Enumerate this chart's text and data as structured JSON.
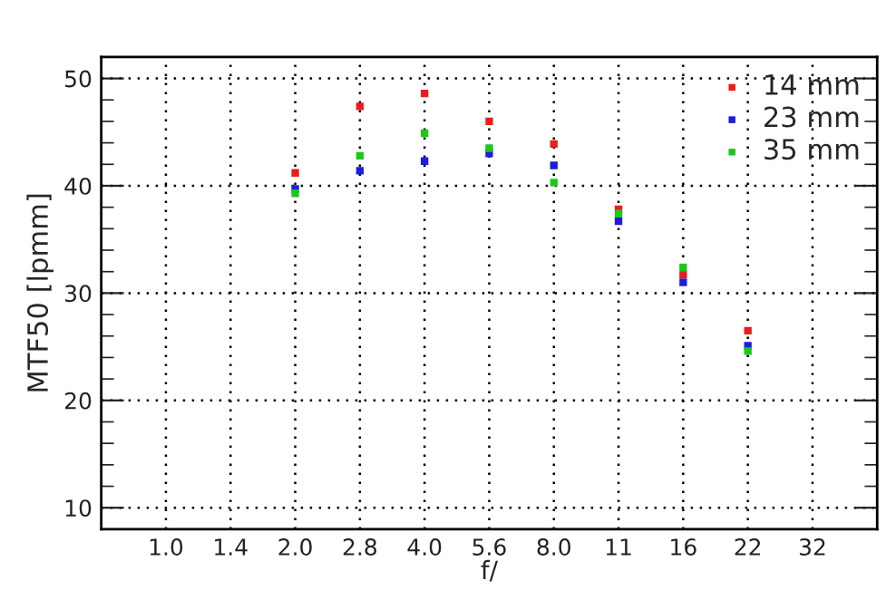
{
  "chart_data": {
    "type": "scatter",
    "xlabel": "f/",
    "ylabel": "MTF50 [lpmm]",
    "categories": [
      "1.0",
      "1.4",
      "2.0",
      "2.8",
      "4.0",
      "5.6",
      "8.0",
      "11",
      "16",
      "22",
      "32"
    ],
    "series": [
      {
        "name": "14 mm",
        "color": "#ee1c1c",
        "values": [
          null,
          null,
          41.2,
          47.4,
          48.6,
          46.0,
          43.9,
          37.8,
          31.7,
          26.5,
          null
        ]
      },
      {
        "name": "23 mm",
        "color": "#1c1cdd",
        "values": [
          null,
          null,
          39.7,
          41.4,
          42.3,
          43.0,
          41.9,
          36.7,
          31.0,
          25.1,
          null
        ]
      },
      {
        "name": "35 mm",
        "color": "#1cc81c",
        "values": [
          null,
          null,
          39.3,
          42.8,
          44.9,
          43.5,
          40.3,
          37.4,
          32.4,
          24.6,
          null
        ]
      }
    ],
    "ylim": [
      8,
      52
    ],
    "yticks": [
      10,
      20,
      30,
      40,
      50
    ],
    "grid": true,
    "legend": "top right",
    "marker": "square"
  }
}
